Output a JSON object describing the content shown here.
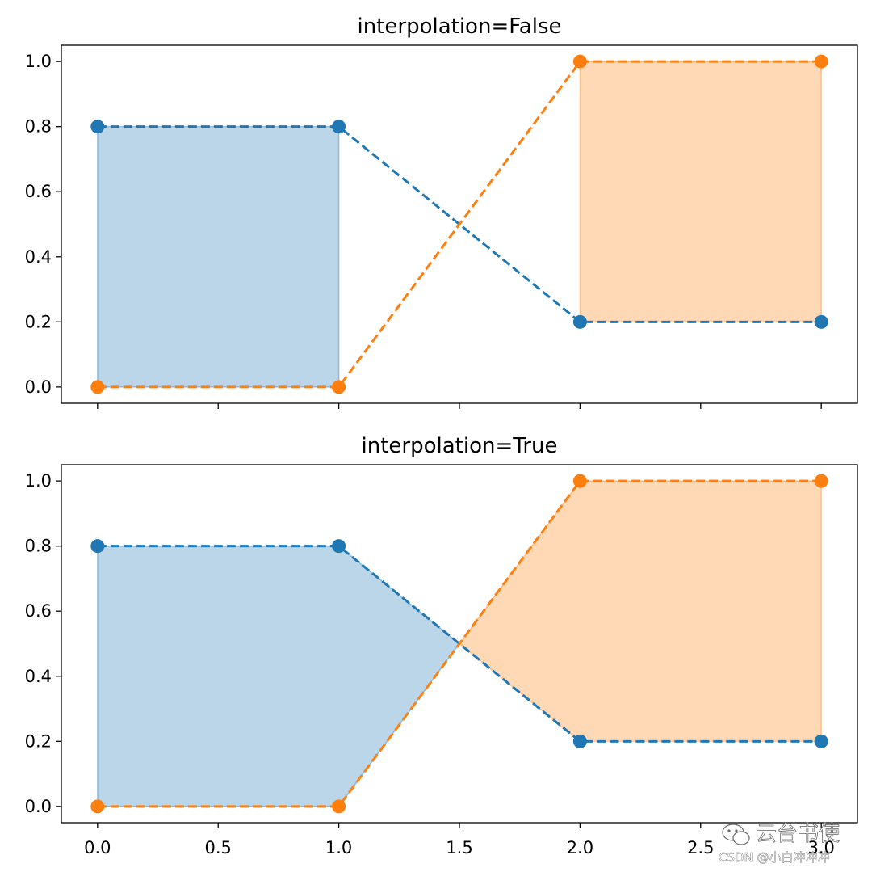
{
  "chart_data": [
    {
      "type": "line",
      "title": "interpolation=False",
      "x": [
        0,
        1,
        2,
        3
      ],
      "series": [
        {
          "values": [
            0.8,
            0.8,
            0.2,
            0.2
          ],
          "color": "#1f77b4",
          "linestyle": "dashed",
          "marker": "o"
        },
        {
          "values": [
            0,
            0,
            1,
            1
          ],
          "color": "#ff7f0e",
          "linestyle": "dashed",
          "marker": "o"
        }
      ],
      "fill_between": {
        "where": [
          true,
          true,
          false,
          false
        ],
        "interpolate": false,
        "color_where_true": "#1f77b4",
        "color_where_false": "#ff7f0e",
        "alpha": 0.3
      },
      "xlim": [
        -0.15,
        3.15
      ],
      "ylim": [
        -0.05,
        1.05
      ],
      "xticks": [
        "0.0",
        "0.5",
        "1.0",
        "1.5",
        "2.0",
        "2.5",
        "3.0"
      ],
      "show_xtick_labels": false,
      "yticks": [
        "0.0",
        "0.2",
        "0.4",
        "0.6",
        "0.8",
        "1.0"
      ],
      "grid": false,
      "xlabel": "",
      "ylabel": ""
    },
    {
      "type": "line",
      "title": "interpolation=True",
      "x": [
        0,
        1,
        2,
        3
      ],
      "series": [
        {
          "values": [
            0.8,
            0.8,
            0.2,
            0.2
          ],
          "color": "#1f77b4",
          "linestyle": "dashed",
          "marker": "o"
        },
        {
          "values": [
            0,
            0,
            1,
            1
          ],
          "color": "#ff7f0e",
          "linestyle": "dashed",
          "marker": "o"
        }
      ],
      "fill_between": {
        "where": [
          true,
          true,
          false,
          false
        ],
        "interpolate": true,
        "color_where_true": "#1f77b4",
        "color_where_false": "#ff7f0e",
        "alpha": 0.3
      },
      "xlim": [
        -0.15,
        3.15
      ],
      "ylim": [
        -0.05,
        1.05
      ],
      "xticks": [
        "0.0",
        "0.5",
        "1.0",
        "1.5",
        "2.0",
        "2.5",
        "3.0"
      ],
      "show_xtick_labels": true,
      "yticks": [
        "0.0",
        "0.2",
        "0.4",
        "0.6",
        "0.8",
        "1.0"
      ],
      "grid": false,
      "xlabel": "",
      "ylabel": ""
    }
  ],
  "watermark": {
    "line1": "云台书使",
    "line2": "CSDN @小白冲冲冲",
    "icon": "wechat-icon"
  }
}
